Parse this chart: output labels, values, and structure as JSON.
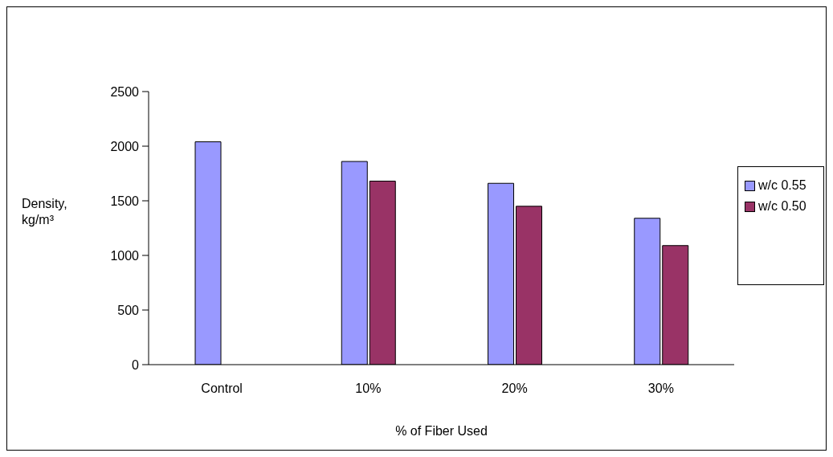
{
  "chart_data": {
    "type": "bar",
    "xlabel": "% of Fiber Used",
    "ylabel": "Density, kg/m³",
    "categories": [
      "Control",
      "10%",
      "20%",
      "30%"
    ],
    "series": [
      {
        "name": "w/c 0.55",
        "color": "#9999ff",
        "values": [
          2040,
          1860,
          1660,
          1340
        ]
      },
      {
        "name": "w/c 0.50",
        "color": "#993366",
        "values": [
          null,
          1680,
          1450,
          1090
        ]
      }
    ],
    "ylim": [
      0,
      2500
    ],
    "yticks": [
      0,
      500,
      1000,
      1500,
      2000,
      2500
    ],
    "grid": false,
    "legend": "right"
  }
}
